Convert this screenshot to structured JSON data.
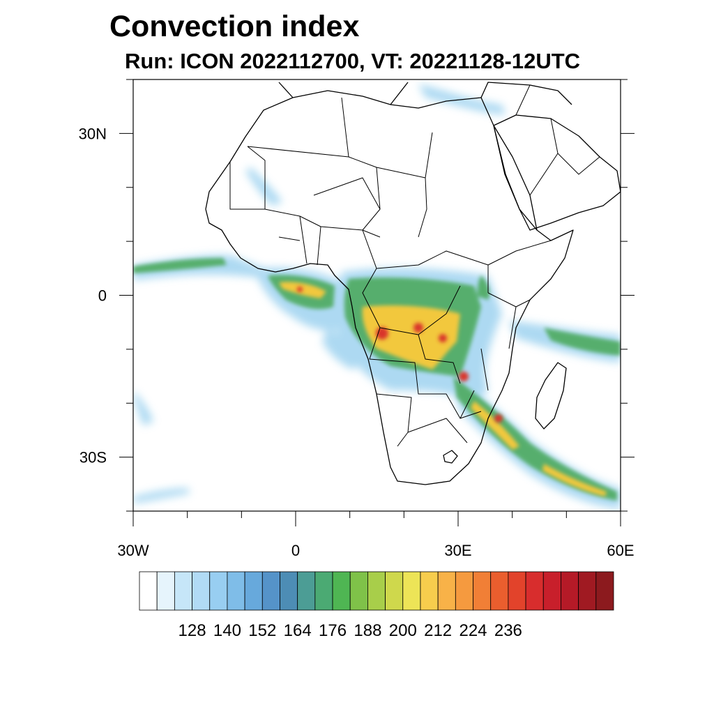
{
  "title": "Convection index",
  "subtitle": "Run: ICON 2022112700,  VT: 20221128-12UTC",
  "map": {
    "lon_range": [
      -30,
      60
    ],
    "lat_range": [
      -40,
      40
    ],
    "lat_ticks": [
      {
        "lat": 30,
        "label": "30N"
      },
      {
        "lat": 0,
        "label": "0"
      },
      {
        "lat": -30,
        "label": "30S"
      }
    ],
    "lon_ticks": [
      {
        "lon": -30,
        "label": "30W"
      },
      {
        "lon": 0,
        "label": "0"
      },
      {
        "lon": 30,
        "label": "30E"
      },
      {
        "lon": 60,
        "label": "60E"
      }
    ],
    "colors": {
      "low": "#9fd3f0",
      "mid": "#4daa5e",
      "high": "#f2c83c",
      "peak": "#d9352a",
      "coast": "#000000"
    }
  },
  "colorbar": {
    "colors": [
      "#ffffff",
      "#e6f4fc",
      "#c6e6f8",
      "#b1dbf5",
      "#98cef1",
      "#7fbde8",
      "#67a9dc",
      "#5593c9",
      "#4d8db5",
      "#4c9d95",
      "#4baa73",
      "#4fb653",
      "#7fc249",
      "#a8ce4a",
      "#cfd84c",
      "#ede457",
      "#f7cd4d",
      "#f8b248",
      "#f59a3f",
      "#f17f36",
      "#ea5e2e",
      "#e2432b",
      "#d82d2d",
      "#c81f2b",
      "#b51a27",
      "#a01a22",
      "#8c1a1e"
    ],
    "labels": [
      "128",
      "140",
      "152",
      "164",
      "176",
      "188",
      "200",
      "212",
      "224",
      "236"
    ]
  }
}
